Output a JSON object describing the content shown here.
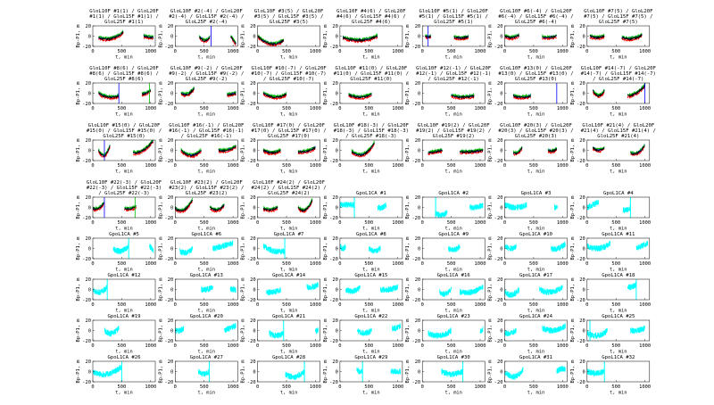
{
  "chart_data": {
    "type": "line",
    "xlabel": "t, min",
    "ylabel": "Bp-P1, m",
    "xlim": [
      0,
      1080
    ],
    "ylim": [
      -20,
      20
    ],
    "xticks": [
      "0",
      "500",
      "1000"
    ],
    "yticks": [
      "20",
      "0",
      "-20"
    ],
    "colors": {
      "multi": [
        "#ff0000",
        "#0000ff",
        "#00c000",
        "#000000"
      ],
      "single": "#00ffff"
    },
    "panels": [
      {
        "title": "GloL10F #1(1) / GloL20F #1(1) / GloL15F #1(1) / GloL25F #1(1)",
        "style": "multi",
        "segments": [
          [
            100,
            530,
            -3,
            -5,
            8
          ],
          [
            880,
            1050,
            0,
            -2,
            -3
          ]
        ],
        "spikes": []
      },
      {
        "title": "GloL10F #2(-4) / GloL20F #2(-4) / GloL15F #2(-4) / GloL25F #2(-4)",
        "style": "multi",
        "segments": [
          [
            420,
            600,
            -2,
            -9,
            -2
          ],
          [
            960,
            1050,
            0,
            -8,
            -15
          ]
        ],
        "spikes": [
          620
        ]
      },
      {
        "title": "GloL10F #3(5) / GloL20F #3(5) / GloL15F #3(5) / GloL25F #3(5)",
        "style": "multi",
        "segments": [
          [
            0,
            450,
            0,
            -15,
            -8
          ]
        ],
        "spikes": []
      },
      {
        "title": "GloL10F #4(6) / GloL20F #4(6) / GloL15F #4(6) / GloL25F #4(6)",
        "style": "multi",
        "segments": [
          [
            50,
            650,
            -3,
            -8,
            0
          ]
        ],
        "spikes": []
      },
      {
        "title": "GloL10F #5(1) / GloL20F #5(1) / GloL15F #5(1) / GloL25F #5(1)",
        "style": "multi",
        "segments": [
          [
            50,
            150,
            0,
            -2,
            0
          ],
          [
            550,
            800,
            -2,
            -4,
            -1
          ]
        ],
        "spikes": [
          100
        ]
      },
      {
        "title": "GloL10F #6(-4) / GloL20F #6(-4) / GloL15F #6(-4) / GloL25F #6(-4)",
        "style": "multi",
        "segments": [
          [
            0,
            250,
            0,
            -3,
            2
          ],
          [
            650,
            900,
            -2,
            -3,
            0
          ]
        ],
        "spikes": []
      },
      {
        "title": "GloL10F #7(5) / GloL20F #7(5) / GloL15F #7(5) / GloL25F #7(5)",
        "style": "multi",
        "segments": [
          [
            50,
            300,
            0,
            -3,
            0
          ],
          [
            600,
            950,
            -3,
            -5,
            2
          ]
        ],
        "spikes": []
      },
      {
        "title": "GloL10F #8(6) / GloL20F #8(6) / GloL15F #8(6) / GloL25F #8(6)",
        "style": "multi",
        "segments": [
          [
            100,
            450,
            0,
            -8,
            -5
          ],
          [
            850,
            1000,
            -2,
            0,
            5
          ]
        ],
        "spikes": [
          450,
          980
        ]
      },
      {
        "title": "GloL10F #9(-2) / GloL20F #9(-2) / GloL15F #9(-2) / GloL25F #9(-2)",
        "style": "multi",
        "segments": [
          [
            100,
            330,
            0,
            -2,
            10
          ],
          [
            900,
            1050,
            -3,
            -2,
            0
          ]
        ],
        "spikes": []
      },
      {
        "title": "GloL10F #10(-7) / GloL20F #10(-7) / GloL15F #10(-7) / GloL25F #10(-7)",
        "style": "multi",
        "segments": [
          [
            100,
            500,
            0,
            -8,
            -2
          ]
        ],
        "spikes": []
      },
      {
        "title": "GloL10F #11(0) / GloL20F #11(0) / GloL15F #11(0) / GloL25F #11(0)",
        "style": "multi",
        "segments": [
          [
            150,
            550,
            -3,
            -8,
            -2
          ]
        ],
        "spikes": []
      },
      {
        "title": "GloL10F #12(-1) / GloL20F #12(-1) / GloL15F #12(-1) / GloL25F #12(-1)",
        "style": "multi",
        "segments": [
          [
            500,
            900,
            -5,
            -8,
            -5
          ]
        ],
        "spikes": []
      },
      {
        "title": "GloL10F #13(0) / GloL20F #13(0) / GloL15F #13(0) / GloL25F #13(0)",
        "style": "multi",
        "segments": [
          [
            150,
            450,
            -5,
            -8,
            -5
          ]
        ],
        "spikes": [
          900
        ]
      },
      {
        "title": "GloL10F #14(-7) / GloL20F #14(-7) / GloL15F #14(-7) / GloL25F #14(-7)",
        "style": "multi",
        "segments": [
          [
            100,
            300,
            5,
            -5,
            5
          ],
          [
            700,
            1000,
            -5,
            0,
            15
          ]
        ],
        "spikes": [
          1000
        ]
      },
      {
        "title": "GloL10F #15(0) / GloL20F #15(0) / GloL15F #15(0) / GloL25F #15(0)",
        "style": "multi",
        "segments": [
          [
            100,
            300,
            0,
            -10,
            10
          ],
          [
            700,
            1050,
            -5,
            0,
            20
          ]
        ],
        "spikes": [
          200
        ]
      },
      {
        "title": "GloL10F #16(-1) / GloL20F #16(-1) / GloL15F #16(-1) / GloL25F #16(-1)",
        "style": "multi",
        "segments": [
          [
            100,
            450,
            0,
            -10,
            0
          ],
          [
            750,
            1050,
            0,
            0,
            8
          ]
        ],
        "spikes": []
      },
      {
        "title": "GloL10F #17(0) / GloL20F #17(0) / GloL15F #17(0) / GloL25F #17(0)",
        "style": "multi",
        "segments": [
          [
            100,
            400,
            0,
            -5,
            0
          ],
          [
            700,
            1000,
            -3,
            -2,
            5
          ]
        ],
        "spikes": []
      },
      {
        "title": "GloL10F #18(-3) / GloL20F #18(-3) / GloL15F #18(-3) / GloL25F #18(-3)",
        "style": "multi",
        "segments": [
          [
            200,
            600,
            -2,
            -8,
            15
          ]
        ],
        "spikes": []
      },
      {
        "title": "GloL10F #19(2) / GloL20F #19(2) / GloL15F #19(2) / GloL25F #19(2)",
        "style": "multi",
        "segments": [
          [
            100,
            350,
            -5,
            -3,
            0
          ],
          [
            650,
            1050,
            -3,
            -3,
            0
          ]
        ],
        "spikes": []
      },
      {
        "title": "GloL10F #20(3) / GloL20F #20(3) / GloL15F #20(3) / GloL25F #20(3)",
        "style": "multi",
        "segments": [
          [
            150,
            300,
            -5,
            -5,
            5
          ],
          [
            750,
            900,
            0,
            -2,
            3
          ]
        ],
        "spikes": []
      },
      {
        "title": "GloL10F #21(4) / GloL20F #21(4) / GloL15F #21(4) / GloL25F #21(4)",
        "style": "multi",
        "segments": [
          [
            100,
            300,
            5,
            0,
            5
          ],
          [
            750,
            1000,
            -5,
            -5,
            10
          ]
        ],
        "spikes": []
      },
      {
        "title": "GloL10F #22(-3) / GloL20F #22(-3) / GloL15F #22(-3) / GloL25F #22(-3)",
        "style": "multi",
        "segments": [
          [
            0,
            200,
            -2,
            -2,
            10
          ],
          [
            550,
            750,
            -2,
            -3,
            2
          ]
        ],
        "spikes": [
          200,
          730
        ]
      },
      {
        "title": "GloL10F #23(2) / GloL20F #23(2) / GloL15F #23(2) / GloL25F #23(2)",
        "style": "multi",
        "segments": [
          [
            0,
            300,
            -2,
            -5,
            15
          ],
          [
            600,
            850,
            0,
            -5,
            5
          ]
        ],
        "spikes": []
      },
      {
        "title": "GloL10F #24(2) / GloL20F #24(2) / GloL15F #24(2) / GloL25F #24(2)",
        "style": "multi",
        "segments": [
          [
            100,
            350,
            -2,
            -5,
            0
          ],
          [
            700,
            950,
            0,
            -5,
            15
          ]
        ],
        "spikes": []
      },
      {
        "title": "GpoL1CA #1",
        "style": "single",
        "segments": [
          [
            0,
            250,
            5,
            5,
            5
          ],
          [
            650,
            800,
            0,
            0,
            5
          ]
        ],
        "spikes": [
          250
        ]
      },
      {
        "title": "GpoL1CA #2",
        "style": "single",
        "segments": [
          [
            220,
            430,
            -10,
            -15,
            -10
          ],
          [
            820,
            1050,
            0,
            0,
            5
          ]
        ],
        "spikes": [
          230
        ]
      },
      {
        "title": "GpoL1CA #3",
        "style": "single",
        "segments": [
          [
            0,
            380,
            5,
            0,
            5
          ],
          [
            860,
            910,
            0,
            0,
            0
          ]
        ],
        "spikes": []
      },
      {
        "title": "GpoL1CA #4",
        "style": "single",
        "segments": [
          [
            0,
            200,
            0,
            5,
            10
          ],
          [
            620,
            750,
            -5,
            -5,
            0
          ]
        ],
        "spikes": [
          750
        ]
      },
      {
        "title": "GpoL1CA #5",
        "style": "single",
        "segments": [
          [
            350,
            620,
            0,
            -5,
            5
          ],
          [
            980,
            1050,
            5,
            0,
            -5
          ]
        ],
        "spikes": [
          620
        ]
      },
      {
        "title": "GpoL1CA #6",
        "style": "single",
        "segments": [
          [
            80,
            300,
            -5,
            -8,
            0
          ],
          [
            650,
            1000,
            0,
            5,
            10
          ]
        ],
        "spikes": []
      },
      {
        "title": "GpoL1CA #7",
        "style": "single",
        "segments": [
          [
            100,
            470,
            5,
            -5,
            -5
          ]
        ],
        "spikes": [
          470
        ]
      },
      {
        "title": "GpoL1CA #8",
        "style": "single",
        "segments": [
          [
            0,
            100,
            5,
            0,
            5
          ],
          [
            500,
            700,
            0,
            -5,
            0
          ]
        ],
        "spikes": []
      },
      {
        "title": "GpoL1CA #9",
        "style": "single",
        "segments": [
          [
            450,
            650,
            0,
            -3,
            5
          ]
        ],
        "spikes": []
      },
      {
        "title": "GpoL1CA #10",
        "style": "single",
        "segments": [
          [
            0,
            200,
            5,
            0,
            5
          ],
          [
            800,
            1050,
            0,
            0,
            10
          ]
        ],
        "spikes": []
      },
      {
        "title": "GpoL1CA #11",
        "style": "single",
        "segments": [
          [
            0,
            400,
            5,
            0,
            10
          ],
          [
            850,
            1050,
            0,
            5,
            10
          ]
        ],
        "spikes": []
      },
      {
        "title": "GpoL1CA #12",
        "style": "single",
        "segments": [
          [
            0,
            250,
            0,
            -5,
            5
          ]
        ],
        "spikes": [
          250
        ]
      },
      {
        "title": "GpoL1CA #13",
        "style": "single",
        "segments": [
          [
            450,
            650,
            0,
            0,
            5
          ],
          [
            950,
            1050,
            0,
            0,
            0
          ]
        ],
        "spikes": []
      },
      {
        "title": "GpoL1CA #14",
        "style": "single",
        "segments": [
          [
            150,
            400,
            -5,
            -5,
            0
          ],
          [
            850,
            1050,
            5,
            5,
            10
          ]
        ],
        "spikes": []
      },
      {
        "title": "GpoL1CA #15",
        "style": "single",
        "segments": [
          [
            100,
            350,
            0,
            -3,
            5
          ],
          [
            700,
            1000,
            0,
            0,
            5
          ]
        ],
        "spikes": []
      },
      {
        "title": "GpoL1CA #16",
        "style": "single",
        "segments": [
          [
            300,
            500,
            -5,
            -8,
            0
          ],
          [
            650,
            1050,
            -5,
            -5,
            5
          ]
        ],
        "spikes": []
      },
      {
        "title": "GpoL1CA #17",
        "style": "single",
        "segments": [
          [
            0,
            250,
            -5,
            -10,
            0
          ],
          [
            600,
            1000,
            0,
            -5,
            5
          ]
        ],
        "spikes": []
      },
      {
        "title": "GpoL1CA #18",
        "style": "single",
        "segments": [
          [
            700,
            850,
            5,
            5,
            10
          ]
        ],
        "spikes": [
          850
        ]
      },
      {
        "title": "GpoL1CA #19",
        "style": "single",
        "segments": [
          [
            200,
            450,
            0,
            -5,
            5
          ]
        ],
        "spikes": []
      },
      {
        "title": "GpoL1CA #20",
        "style": "single",
        "segments": [
          [
            0,
            150,
            0,
            0,
            5
          ],
          [
            850,
            1050,
            0,
            5,
            10
          ]
        ],
        "spikes": []
      },
      {
        "title": "GpoL1CA #21",
        "style": "single",
        "segments": [
          [
            200,
            450,
            -5,
            -10,
            -5
          ],
          [
            1000,
            1050,
            0,
            0,
            0
          ]
        ],
        "spikes": [
          450
        ]
      },
      {
        "title": "GpoL1CA #22",
        "style": "single",
        "segments": [
          [
            300,
            550,
            0,
            -5,
            0
          ],
          [
            900,
            1050,
            5,
            5,
            10
          ]
        ],
        "spikes": []
      },
      {
        "title": "GpoL1CA #23",
        "style": "single",
        "segments": [
          [
            100,
            500,
            -5,
            -10,
            0
          ],
          [
            1000,
            1050,
            0,
            0,
            5
          ]
        ],
        "spikes": []
      },
      {
        "title": "GpoL1CA #24",
        "style": "single",
        "segments": [
          [
            0,
            200,
            -5,
            -5,
            0
          ],
          [
            650,
            1050,
            5,
            0,
            10
          ]
        ],
        "spikes": []
      },
      {
        "title": "GpoL1CA #25",
        "style": "single",
        "segments": [
          [
            0,
            350,
            -5,
            -10,
            0
          ],
          [
            750,
            1000,
            0,
            0,
            5
          ]
        ],
        "spikes": [
          50
        ]
      },
      {
        "title": "GpoL1CA #26",
        "style": "single",
        "segments": [
          [
            0,
            500,
            0,
            -5,
            10
          ]
        ],
        "spikes": [
          500
        ]
      },
      {
        "title": "GpoL1CA #27",
        "style": "single",
        "segments": [
          [
            400,
            590,
            0,
            -5,
            0
          ]
        ],
        "spikes": [
          590
        ]
      },
      {
        "title": "GpoL1CA #28",
        "style": "single",
        "segments": [
          [
            480,
            810,
            -5,
            -10,
            0
          ]
        ],
        "spikes": [
          810
        ]
      },
      {
        "title": "GpoL1CA #29",
        "style": "single",
        "segments": [
          [
            290,
            390,
            5,
            0,
            0
          ],
          [
            880,
            1050,
            0,
            0,
            0
          ]
        ],
        "spikes": [
          390
        ]
      },
      {
        "title": "GpoL1CA #30",
        "style": "single",
        "segments": [
          [
            330,
            700,
            0,
            -5,
            0
          ]
        ],
        "spikes": [
          700
        ]
      },
      {
        "title": "GpoL1CA #31",
        "style": "single",
        "segments": [
          [
            0,
            320,
            0,
            -10,
            5
          ],
          [
            900,
            1050,
            0,
            5,
            5
          ]
        ],
        "spikes": []
      },
      {
        "title": "GpoL1CA #32",
        "style": "single",
        "segments": [
          [
            0,
            300,
            0,
            -3,
            0
          ]
        ],
        "spikes": [
          300
        ]
      }
    ]
  }
}
